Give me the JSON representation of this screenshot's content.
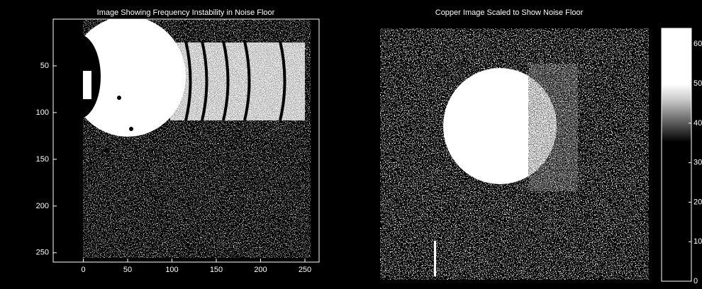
{
  "chart_data": [
    {
      "type": "image",
      "title": "Image Showing Frequency Instability in Noise Floor",
      "xlim": [
        -34,
        266
      ],
      "xticks": [
        0,
        50,
        100,
        150,
        200,
        250
      ],
      "ylim": [
        0,
        260
      ],
      "yticks": [
        50,
        100,
        150,
        200,
        250
      ],
      "y_reversed": true
    },
    {
      "type": "image",
      "title": "Copper Image Scaled to Show Noise Floor"
    },
    {
      "type": "colorbar",
      "ylim": [
        0,
        64
      ],
      "yticks": [
        0,
        10,
        20,
        30,
        40,
        50,
        60
      ]
    }
  ]
}
